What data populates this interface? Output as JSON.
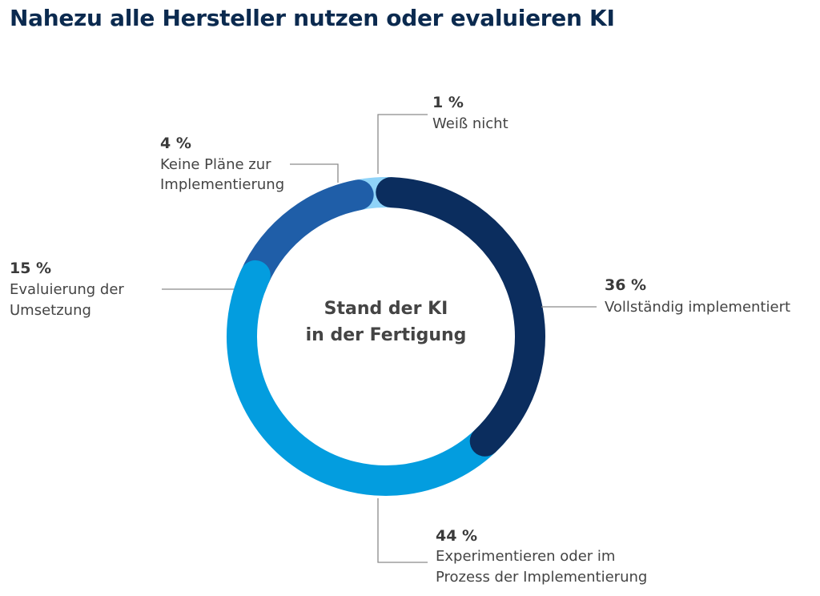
{
  "title": "Nahezu alle Hersteller nutzen oder evaluieren KI",
  "chart_data": {
    "type": "pie",
    "variant": "donut",
    "title": "Nahezu alle Hersteller nutzen oder evaluieren KI",
    "center_label": [
      "Stand der KI",
      "in der Fertigung"
    ],
    "unit": "%",
    "slices": [
      {
        "key": "vollstaendig",
        "value": 36,
        "value_label": "36 %",
        "label": [
          "Vollständig implementiert"
        ],
        "color": "#0b2d5e"
      },
      {
        "key": "experimentieren",
        "value": 44,
        "value_label": "44 %",
        "label": [
          "Experimentieren oder im",
          "Prozess der Implementierung"
        ],
        "color": "#039ddf"
      },
      {
        "key": "evaluierung",
        "value": 15,
        "value_label": "15 %",
        "label": [
          "Evaluierung der",
          "Umsetzung"
        ],
        "color": "#1f5ea8"
      },
      {
        "key": "keine-plaene",
        "value": 4,
        "value_label": "4 %",
        "label": [
          "Keine Pläne zur",
          "Implementierung"
        ],
        "color": "#8fd3f8"
      },
      {
        "key": "weiss-nicht",
        "value": 1,
        "value_label": "1 %",
        "label": [
          "Weiß nicht"
        ],
        "color": "#d9dadc"
      }
    ]
  }
}
